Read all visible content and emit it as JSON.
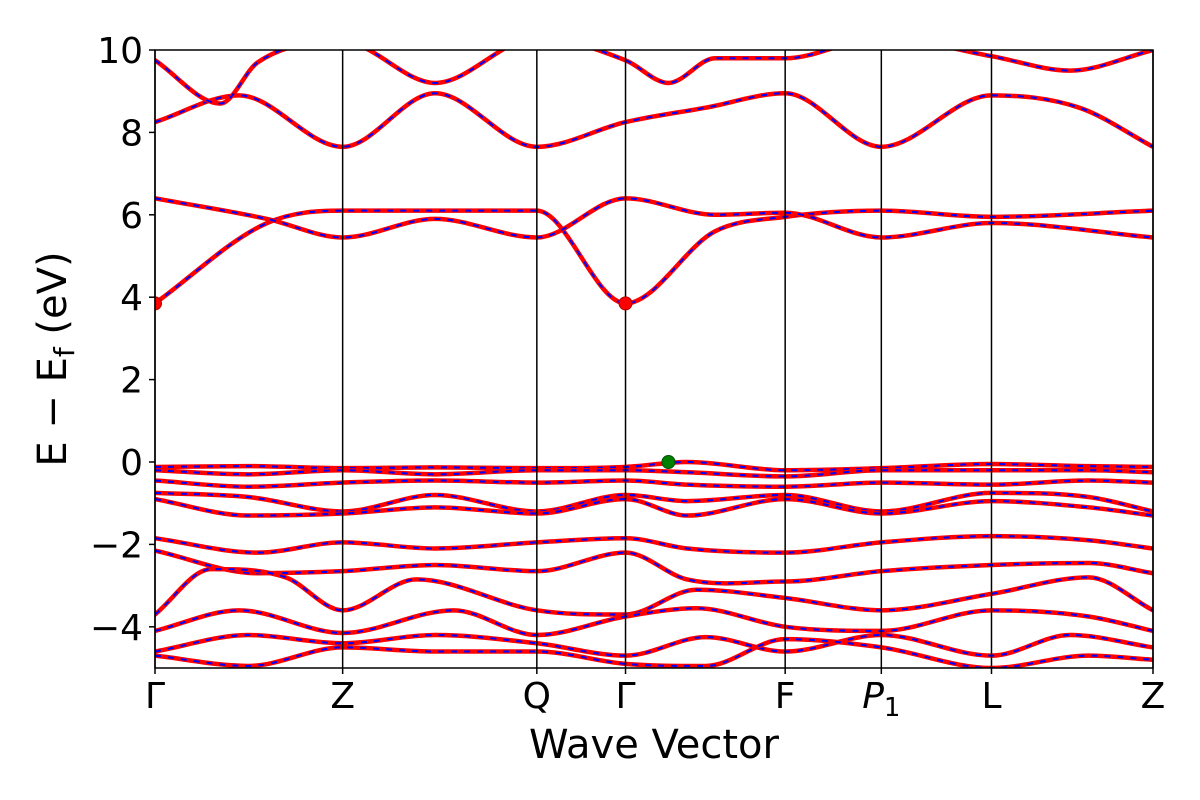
{
  "chart_data": {
    "type": "line",
    "xlabel": "Wave Vector",
    "ylabel_main": "E − E",
    "ylabel_sub": "f",
    "ylabel_unit": " (eV)",
    "ylim": [
      -5,
      10
    ],
    "yticks": [
      -4,
      -2,
      0,
      2,
      4,
      6,
      8,
      10
    ],
    "ytick_labels": [
      "−4",
      "−2",
      "0",
      "2",
      "4",
      "6",
      "8",
      "10"
    ],
    "xlim": [
      0,
      5.345
    ],
    "kpoints": [
      {
        "label": "Γ",
        "sub": "",
        "x": 0.0
      },
      {
        "label": "Z",
        "sub": "",
        "x": 1.005
      },
      {
        "label": "Q",
        "sub": "",
        "x": 2.045
      },
      {
        "label": "Γ",
        "sub": "",
        "x": 2.52
      },
      {
        "label": "F",
        "sub": "",
        "x": 3.375
      },
      {
        "label": "P",
        "sub": "1",
        "x": 3.89
      },
      {
        "label": "L",
        "sub": "",
        "x": 4.48
      },
      {
        "label": "Z",
        "sub": "",
        "x": 5.345
      }
    ],
    "colors": {
      "solid": "#ff0000",
      "dashed": "#0000ff",
      "cbm": "#ff0000",
      "vbm": "#008000",
      "kline": "#000000"
    },
    "series": [
      {
        "x": [
          0,
          0.6,
          1.005,
          1.5,
          2.045,
          2.52,
          3.0,
          3.375,
          3.89,
          4.48,
          5.345
        ],
        "values": [
          3.85,
          5.8,
          6.1,
          6.1,
          6.1,
          3.85,
          5.6,
          5.95,
          6.1,
          5.95,
          6.1
        ]
      },
      {
        "x": [
          0,
          0.6,
          1.005,
          1.5,
          2.045,
          2.52,
          3.0,
          3.375,
          3.89,
          4.48,
          5.345
        ],
        "values": [
          6.4,
          5.9,
          5.45,
          5.9,
          5.45,
          6.4,
          6.0,
          6.05,
          5.45,
          5.8,
          5.45
        ]
      },
      {
        "x": [
          0,
          0.45,
          1.005,
          1.5,
          2.045,
          2.52,
          2.95,
          3.375,
          3.89,
          4.48,
          4.95,
          5.345
        ],
        "values": [
          8.25,
          8.9,
          7.65,
          8.95,
          7.65,
          8.25,
          8.6,
          8.95,
          7.65,
          8.9,
          8.6,
          7.65
        ]
      },
      {
        "x": [
          0,
          0.35,
          0.55,
          1.005,
          1.5,
          2.045,
          2.52,
          2.75,
          3.0,
          3.375,
          3.89,
          4.48,
          4.9,
          5.345
        ],
        "values": [
          9.75,
          8.7,
          9.7,
          10.2,
          9.2,
          10.3,
          9.75,
          9.2,
          9.8,
          9.8,
          10.3,
          9.85,
          9.5,
          10.0
        ]
      },
      {
        "x": [
          0,
          0.5,
          1.005,
          1.5,
          2.045,
          2.52,
          2.85,
          3.375,
          3.89,
          4.48,
          5.0,
          5.345
        ],
        "values": [
          -0.12,
          -0.1,
          -0.15,
          -0.13,
          -0.15,
          -0.12,
          0.0,
          -0.2,
          -0.15,
          -0.05,
          -0.1,
          -0.12
        ]
      },
      {
        "x": [
          0,
          0.5,
          1.005,
          1.5,
          2.045,
          2.52,
          2.85,
          3.375,
          3.89,
          4.48,
          5.0,
          5.345
        ],
        "values": [
          -0.2,
          -0.3,
          -0.2,
          -0.3,
          -0.2,
          -0.2,
          -0.25,
          -0.35,
          -0.2,
          -0.2,
          -0.2,
          -0.25
        ]
      },
      {
        "x": [
          0,
          0.5,
          1.005,
          1.5,
          2.045,
          2.52,
          2.85,
          3.375,
          3.89,
          4.48,
          5.0,
          5.345
        ],
        "values": [
          -0.45,
          -0.6,
          -0.5,
          -0.45,
          -0.5,
          -0.45,
          -0.55,
          -0.6,
          -0.5,
          -0.55,
          -0.45,
          -0.5
        ]
      },
      {
        "x": [
          0,
          0.5,
          1.005,
          1.5,
          2.045,
          2.52,
          2.85,
          3.375,
          3.89,
          4.48,
          5.0,
          5.345
        ],
        "values": [
          -0.75,
          -0.85,
          -1.2,
          -0.8,
          -1.2,
          -0.8,
          -0.95,
          -0.8,
          -1.2,
          -0.75,
          -0.85,
          -1.2
        ]
      },
      {
        "x": [
          0,
          0.5,
          1.005,
          1.5,
          2.045,
          2.52,
          2.85,
          3.375,
          3.89,
          4.48,
          5.0,
          5.345
        ],
        "values": [
          -0.9,
          -1.3,
          -1.25,
          -1.1,
          -1.25,
          -0.9,
          -1.3,
          -0.9,
          -1.25,
          -0.95,
          -1.1,
          -1.3
        ]
      },
      {
        "x": [
          0,
          0.55,
          1.005,
          1.5,
          2.045,
          2.52,
          2.85,
          3.375,
          3.89,
          4.48,
          5.0,
          5.345
        ],
        "values": [
          -1.85,
          -2.2,
          -1.95,
          -2.1,
          -1.95,
          -1.85,
          -2.1,
          -2.2,
          -1.95,
          -1.8,
          -1.9,
          -2.1
        ]
      },
      {
        "x": [
          0,
          0.55,
          1.005,
          1.5,
          2.045,
          2.52,
          2.85,
          3.375,
          3.89,
          4.48,
          5.0,
          5.345
        ],
        "values": [
          -2.15,
          -2.7,
          -2.65,
          -2.5,
          -2.65,
          -2.2,
          -2.85,
          -2.9,
          -2.65,
          -2.5,
          -2.45,
          -2.7
        ]
      },
      {
        "x": [
          0,
          0.3,
          0.7,
          1.005,
          1.4,
          2.045,
          2.52,
          2.9,
          3.375,
          3.89,
          4.48,
          5.0,
          5.345
        ],
        "values": [
          -3.7,
          -2.6,
          -2.8,
          -3.6,
          -2.85,
          -3.6,
          -3.7,
          -3.1,
          -3.3,
          -3.6,
          -3.2,
          -2.8,
          -3.6
        ]
      },
      {
        "x": [
          0,
          0.45,
          1.005,
          1.6,
          2.045,
          2.52,
          2.9,
          3.375,
          3.89,
          4.48,
          5.0,
          5.345
        ],
        "values": [
          -4.1,
          -3.6,
          -4.15,
          -3.6,
          -4.2,
          -3.75,
          -3.55,
          -4.0,
          -4.1,
          -3.6,
          -3.75,
          -4.1
        ]
      },
      {
        "x": [
          0,
          0.5,
          1.005,
          1.5,
          2.045,
          2.52,
          2.95,
          3.375,
          3.89,
          4.48,
          4.9,
          5.345
        ],
        "values": [
          -4.6,
          -4.2,
          -4.4,
          -4.2,
          -4.4,
          -4.7,
          -4.25,
          -4.6,
          -4.2,
          -4.7,
          -4.2,
          -4.5
        ]
      },
      {
        "x": [
          0,
          0.5,
          1.005,
          1.5,
          2.045,
          2.52,
          2.95,
          3.375,
          3.89,
          4.48,
          5.0,
          5.345
        ],
        "values": [
          -4.7,
          -4.95,
          -4.5,
          -4.6,
          -4.6,
          -4.9,
          -4.95,
          -4.3,
          -4.5,
          -5.0,
          -4.7,
          -4.8
        ]
      }
    ],
    "cbm_points": [
      {
        "x": 0.0,
        "y": 3.85
      },
      {
        "x": 2.52,
        "y": 3.85
      }
    ],
    "vbm_points": [
      {
        "x": 2.75,
        "y": 0.0
      }
    ]
  }
}
